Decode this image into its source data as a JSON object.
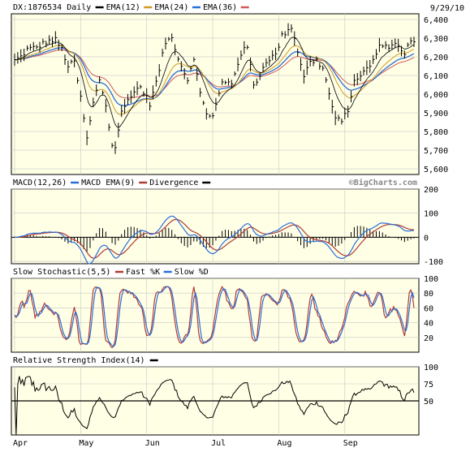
{
  "date_label": "9/29/10",
  "watermark": "©BigCharts.com",
  "chart_data": [
    {
      "type": "line",
      "title": "DX:1876534 Daily",
      "legend": [
        {
          "label": "EMA(12)",
          "color": "#000000"
        },
        {
          "label": "EMA(24)",
          "color": "#d09a20"
        },
        {
          "label": "EMA(36)",
          "color": "#2a6ed8"
        },
        {
          "label": "",
          "color": "#d05a5a"
        }
      ],
      "ylim": [
        5570,
        6430
      ],
      "yticks": [
        5600,
        5700,
        5800,
        5900,
        6000,
        6100,
        6200,
        6300,
        6400
      ],
      "ytick_labels": [
        "5,600",
        "5,700",
        "5,800",
        "5,900",
        "6,000",
        "6,100",
        "6,200",
        "6,300",
        "6,400"
      ],
      "price_anchors": [
        [
          0,
          6180
        ],
        [
          4,
          6200
        ],
        [
          8,
          6240
        ],
        [
          14,
          6250
        ],
        [
          20,
          6280
        ],
        [
          26,
          6290
        ],
        [
          30,
          6240
        ],
        [
          34,
          6150
        ],
        [
          38,
          6170
        ],
        [
          42,
          5980
        ],
        [
          46,
          5760
        ],
        [
          50,
          5950
        ],
        [
          54,
          6080
        ],
        [
          58,
          5940
        ],
        [
          62,
          5720
        ],
        [
          64,
          5720
        ],
        [
          68,
          5900
        ],
        [
          74,
          6000
        ],
        [
          80,
          6040
        ],
        [
          86,
          5950
        ],
        [
          90,
          6060
        ],
        [
          96,
          6280
        ],
        [
          100,
          6300
        ],
        [
          106,
          6150
        ],
        [
          110,
          6080
        ],
        [
          114,
          6200
        ],
        [
          118,
          6000
        ],
        [
          122,
          5900
        ],
        [
          126,
          5880
        ],
        [
          132,
          6060
        ],
        [
          138,
          6060
        ],
        [
          144,
          6220
        ],
        [
          148,
          6250
        ],
        [
          152,
          6050
        ],
        [
          156,
          6100
        ],
        [
          160,
          6180
        ],
        [
          166,
          6210
        ],
        [
          170,
          6310
        ],
        [
          174,
          6350
        ],
        [
          176,
          6360
        ],
        [
          180,
          6230
        ],
        [
          184,
          6100
        ],
        [
          188,
          6170
        ],
        [
          192,
          6180
        ],
        [
          196,
          6140
        ],
        [
          200,
          6000
        ],
        [
          204,
          5870
        ],
        [
          208,
          5850
        ],
        [
          212,
          5920
        ],
        [
          216,
          6060
        ],
        [
          222,
          6130
        ],
        [
          226,
          6140
        ],
        [
          232,
          6260
        ],
        [
          236,
          6250
        ],
        [
          240,
          6270
        ],
        [
          244,
          6260
        ],
        [
          248,
          6220
        ],
        [
          252,
          6290
        ],
        [
          254,
          6280
        ]
      ]
    },
    {
      "type": "line",
      "title": "MACD(12,26)",
      "legend": [
        {
          "label": "MACD EMA(9)",
          "color": "#2a6ed8"
        },
        {
          "label": "Divergence",
          "color": "#b03a30"
        },
        {
          "label": "",
          "color": "#000000"
        }
      ],
      "ylim": [
        -110,
        200
      ],
      "yticks": [
        -100,
        0,
        100,
        200
      ],
      "ytick_labels": [
        "-100",
        "0",
        "100",
        "200"
      ]
    },
    {
      "type": "line",
      "title": "Slow Stochastic(5,5)",
      "legend": [
        {
          "label": "Fast %K",
          "color": "#b03a30"
        },
        {
          "label": "Slow %D",
          "color": "#2a6ed8"
        }
      ],
      "ylim": [
        0,
        100
      ],
      "yticks": [
        20,
        40,
        60,
        80,
        100
      ],
      "ytick_labels": [
        "20",
        "40",
        "60",
        "80",
        "100"
      ]
    },
    {
      "type": "line",
      "title": "Relative Strength Index(14)",
      "legend": [
        {
          "label": "",
          "color": "#000000"
        }
      ],
      "ylim": [
        0,
        100
      ],
      "yticks": [
        50,
        75,
        100
      ],
      "ytick_labels": [
        "50",
        "75",
        "100"
      ],
      "reference_line": 50
    }
  ],
  "x_axis": {
    "labels": [
      "Apr",
      "May",
      "Jun",
      "Jul",
      "Aug",
      "Sep"
    ],
    "label_index": [
      0,
      42,
      84,
      126,
      168,
      210
    ],
    "count": 255
  }
}
